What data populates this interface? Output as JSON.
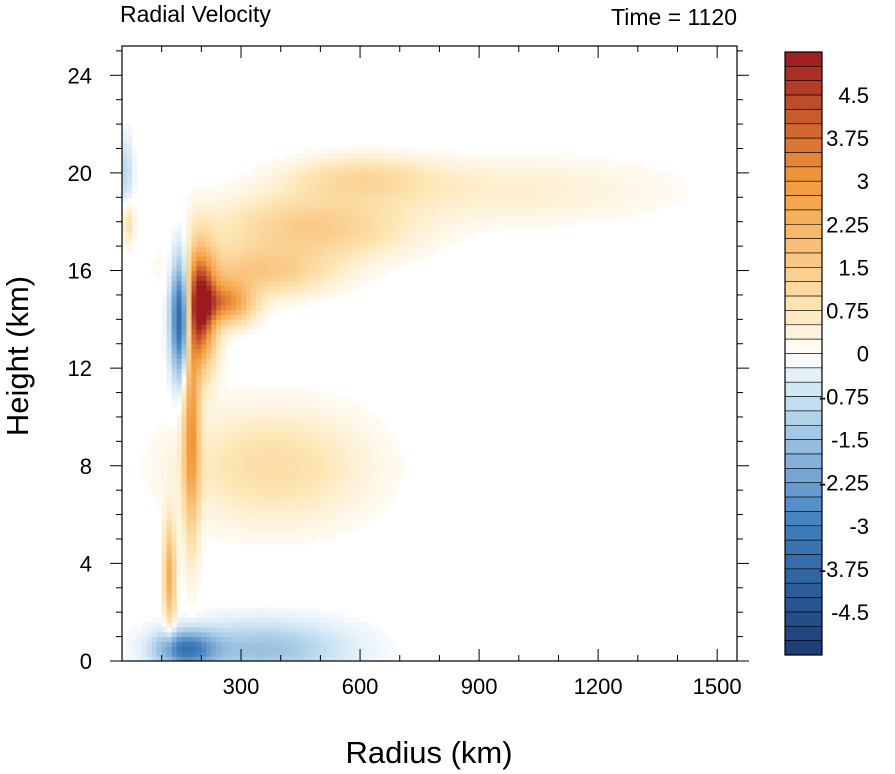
{
  "chart_data": {
    "type": "heatmap",
    "title_left": "Radial Velocity",
    "title_right": "Time = 1120",
    "xlabel": "Radius (km)",
    "ylabel": "Height (km)",
    "xlim": [
      0,
      1550
    ],
    "ylim": [
      0,
      25.2
    ],
    "xticks": [
      300,
      600,
      900,
      1200,
      1500
    ],
    "yticks": [
      0,
      4,
      8,
      12,
      16,
      20,
      24
    ],
    "grid": false,
    "colorbar": {
      "min": -5.25,
      "max": 5.25,
      "step": 0.25,
      "labels": [
        "4.5",
        "3.75",
        "3",
        "2.25",
        "1.5",
        "0.75",
        "0",
        "-0.75",
        "-1.5",
        "-2.25",
        "-3",
        "-3.75",
        "-4.5"
      ],
      "label_values": [
        4.5,
        3.75,
        3,
        2.25,
        1.5,
        0.75,
        0,
        -0.75,
        -1.5,
        -2.25,
        -3,
        -3.75,
        -4.5
      ],
      "colors": {
        "strong_negative": "#1b3a73",
        "negative": "#3f80bf",
        "weak_negative": "#c9e2f2",
        "zero": "#ffffff",
        "weak_positive": "#fde6b4",
        "positive": "#f39a3a",
        "strong_positive": "#9b1b1e"
      }
    },
    "features": [
      {
        "r": 195,
        "z": 14.5,
        "dr": 28,
        "dz": 1.6,
        "v": 5.3
      },
      {
        "r": 150,
        "z": 14.2,
        "dr": 18,
        "dz": 1.7,
        "v": -5.0
      },
      {
        "r": 265,
        "z": 14.7,
        "dr": 45,
        "dz": 0.6,
        "v": 3.0
      },
      {
        "r": 175,
        "z": 9.5,
        "dr": 14,
        "dz": 3.0,
        "v": 3.0
      },
      {
        "r": 120,
        "z": 3.5,
        "dr": 10,
        "dz": 1.5,
        "v": 2.5
      },
      {
        "r": 160,
        "z": 0.5,
        "dr": 50,
        "dz": 0.5,
        "v": -2.8
      },
      {
        "r": 350,
        "z": 0.5,
        "dr": 150,
        "dz": 0.8,
        "v": -1.5
      },
      {
        "r": 480,
        "z": 17.8,
        "dr": 160,
        "dz": 0.9,
        "v": 1.5
      },
      {
        "r": 350,
        "z": 16.0,
        "dr": 120,
        "dz": 0.7,
        "v": 1.5
      },
      {
        "r": 380,
        "z": 8.0,
        "dr": 160,
        "dz": 1.6,
        "v": 1.0
      },
      {
        "r": 600,
        "z": 19.8,
        "dr": 120,
        "dz": 0.6,
        "v": 1.0
      },
      {
        "r": 950,
        "z": 19.3,
        "dr": 280,
        "dz": 0.9,
        "v": 0.5
      },
      {
        "r": 10,
        "z": 20.0,
        "dr": 12,
        "dz": 1.0,
        "v": -1.0
      },
      {
        "r": 15,
        "z": 18.0,
        "dr": 10,
        "dz": 0.6,
        "v": 1.0
      }
    ]
  }
}
